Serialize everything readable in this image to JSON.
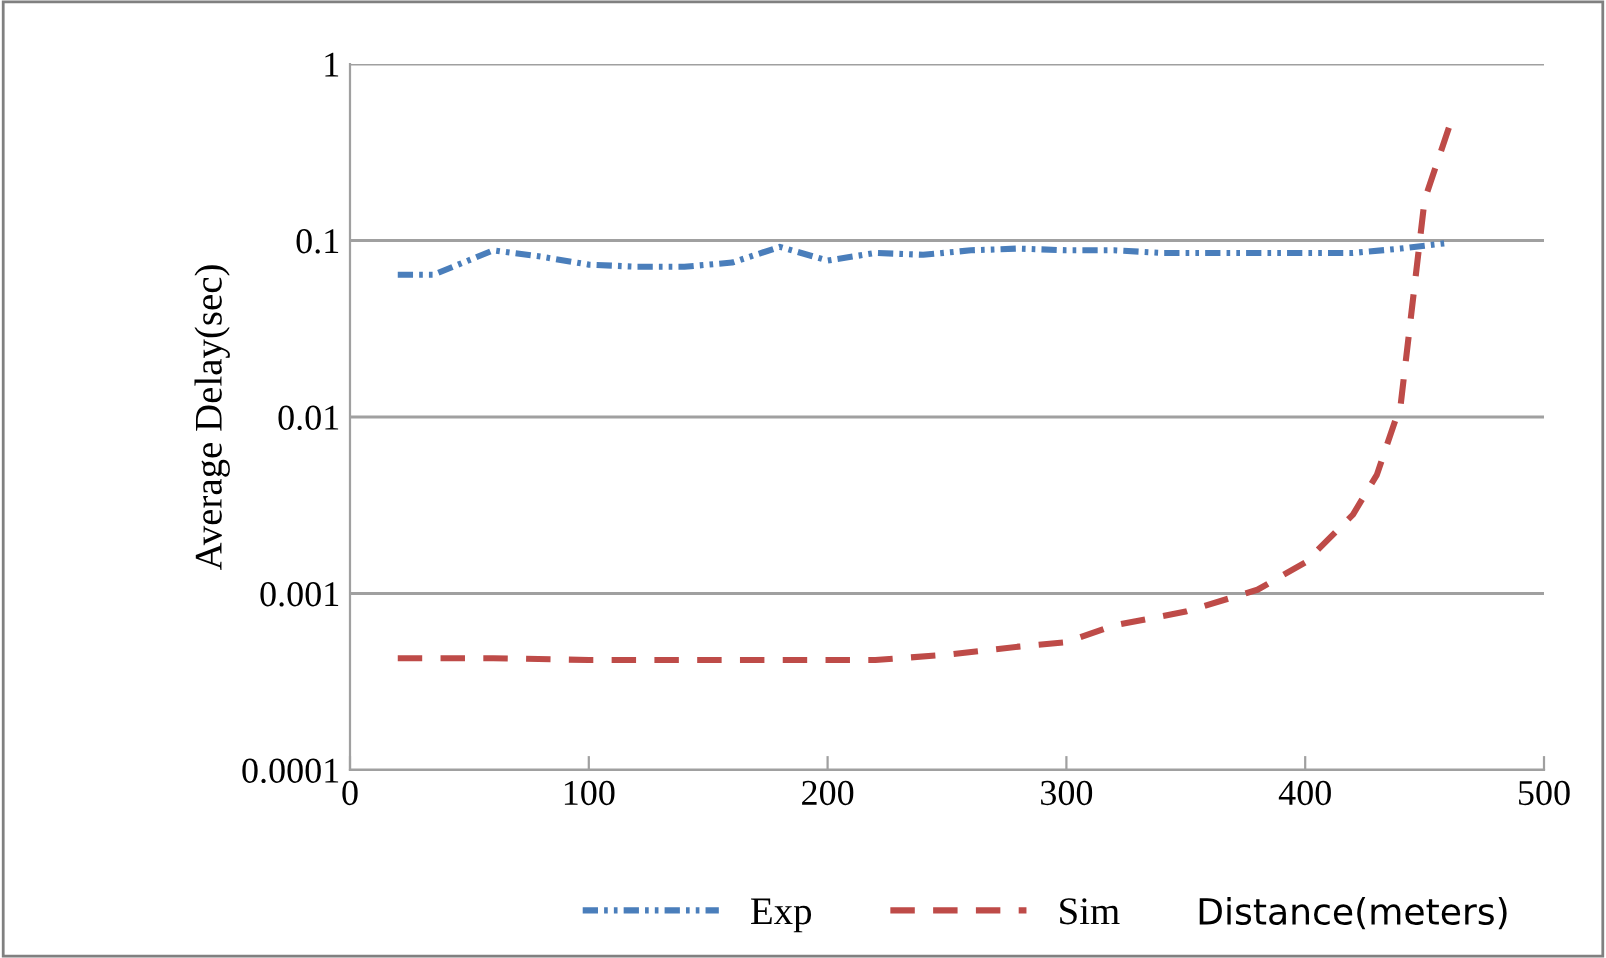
{
  "chart_data": {
    "type": "line",
    "xlabel": "Distance(meters)",
    "ylabel": "Average Delay(sec)",
    "log": "y",
    "grid": "y",
    "legend": "bottom",
    "xlim": [
      0,
      500
    ],
    "xticks": [
      0,
      100,
      200,
      300,
      400,
      500
    ],
    "ylim": [
      0.0001,
      1
    ],
    "yticks": [
      0.0001,
      0.001,
      0.01,
      0.1,
      1
    ],
    "series": [
      {
        "name": "Exp",
        "color": "#4a7ebb",
        "line_style": "dashdot",
        "x": [
          20,
          35,
          60,
          80,
          100,
          120,
          140,
          160,
          180,
          200,
          220,
          240,
          260,
          280,
          300,
          320,
          340,
          360,
          380,
          400,
          420,
          440,
          460
        ],
        "values": [
          0.064,
          0.064,
          0.088,
          0.081,
          0.073,
          0.071,
          0.071,
          0.075,
          0.092,
          0.077,
          0.085,
          0.083,
          0.088,
          0.09,
          0.088,
          0.088,
          0.085,
          0.085,
          0.085,
          0.085,
          0.085,
          0.09,
          0.097
        ]
      },
      {
        "name": "Sim",
        "color": "#be4b48",
        "line_style": "dashed",
        "x": [
          20,
          60,
          100,
          140,
          180,
          220,
          250,
          280,
          300,
          320,
          350,
          380,
          400,
          420,
          430,
          440,
          450,
          461
        ],
        "values": [
          0.00043,
          0.00043,
          0.00042,
          0.00042,
          0.00042,
          0.00042,
          0.00045,
          0.0005,
          0.00053,
          0.00066,
          0.00079,
          0.00105,
          0.0015,
          0.0028,
          0.0047,
          0.0118,
          0.17,
          0.47
        ]
      }
    ]
  }
}
